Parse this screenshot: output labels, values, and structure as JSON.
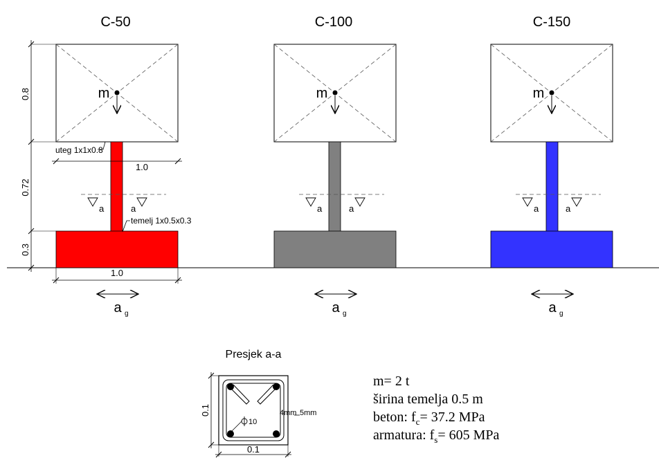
{
  "models": [
    {
      "name": "C-50",
      "color": "#ff0000"
    },
    {
      "name": "C-100",
      "color": "#808080"
    },
    {
      "name": "C-150",
      "color": "#3333ff"
    }
  ],
  "mass_label": "m",
  "accel_label": "a",
  "accel_sub": "g",
  "section_mark": "a",
  "dimensions": {
    "mass_height": "0.8",
    "column_height": "0.72",
    "foundation_height": "0.3",
    "mass_width": "1.0",
    "foundation_width": "1.0"
  },
  "annotations": {
    "mass_block": "uteg 1x1x0.8",
    "foundation": "temelj 1x0.5x0.3"
  },
  "section": {
    "title": "Presjek a-a",
    "height": "0.1",
    "width": "0.1",
    "bar_label": "10",
    "stirrup": "4mm",
    "cover": "5mm"
  },
  "properties": {
    "mass": "m= 2 t",
    "width": "širina temelja 0.5 m",
    "concrete_prefix": "beton: f",
    "concrete_sub": "c",
    "concrete_value": "= 37.2 MPa",
    "steel_prefix": "armatura: f",
    "steel_sub": "s",
    "steel_value": "= 605 MPa"
  }
}
